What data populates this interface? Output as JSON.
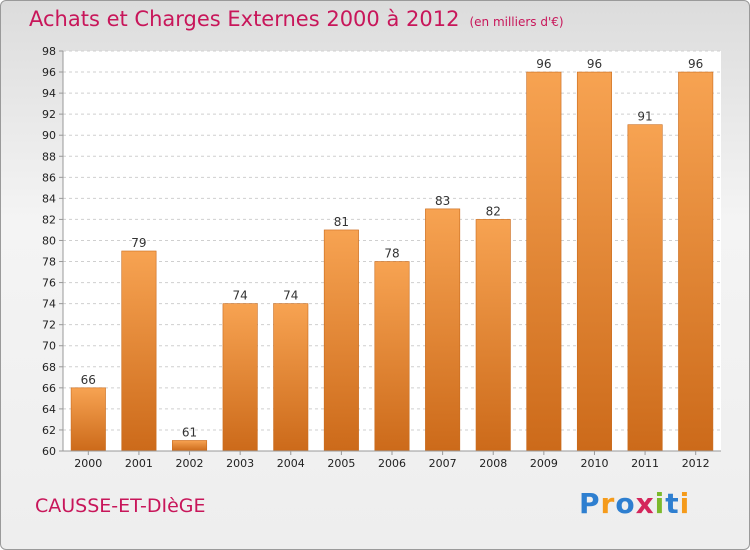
{
  "title": "Achats et Charges Externes 2000 à 2012",
  "unit": "(en milliers d'€)",
  "place": "CAUSSE-ET-DIèGE",
  "logo": {
    "text": "Proxiti",
    "letters": [
      {
        "ch": "P",
        "color": "#2e7fd0"
      },
      {
        "ch": "r",
        "color": "#f59b1b"
      },
      {
        "ch": "o",
        "color": "#2e7fd0"
      },
      {
        "ch": "x",
        "color": "#d4265b"
      },
      {
        "ch": "i",
        "color": "#7cb92c"
      },
      {
        "ch": "t",
        "color": "#2e7fd0"
      },
      {
        "ch": "i",
        "color": "#f59b1b"
      }
    ]
  },
  "chart_data": {
    "type": "bar",
    "categories": [
      "2000",
      "2001",
      "2002",
      "2003",
      "2004",
      "2005",
      "2006",
      "2007",
      "2008",
      "2009",
      "2010",
      "2011",
      "2012"
    ],
    "values": [
      66,
      79,
      61,
      74,
      74,
      81,
      78,
      83,
      82,
      96,
      96,
      91,
      96
    ],
    "ylim": [
      60,
      98
    ],
    "yticks": [
      60,
      62,
      64,
      66,
      68,
      70,
      72,
      74,
      76,
      78,
      80,
      82,
      84,
      86,
      88,
      90,
      92,
      94,
      96,
      98
    ],
    "grid": true,
    "bar_color": "#f2993f"
  }
}
